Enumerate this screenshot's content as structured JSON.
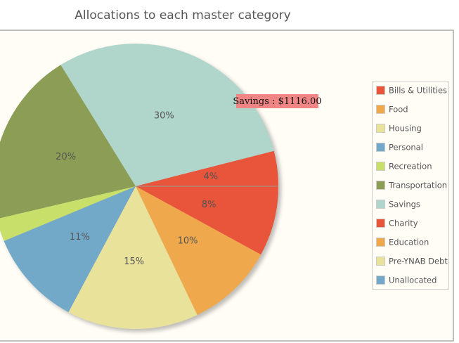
{
  "chart_data": {
    "type": "pie",
    "title": "Allocations to each master category",
    "categories": [
      "Bills & Utilities",
      "Food",
      "Housing",
      "Personal",
      "Recreation",
      "Transportation",
      "Savings",
      "Charity",
      "Education",
      "Pre-YNAB Debt",
      "Unallocated"
    ],
    "values": [
      8,
      10,
      15,
      11,
      2.6,
      20,
      30,
      4,
      0,
      0,
      0
    ],
    "value_labels": [
      "8%",
      "10%",
      "15%",
      "11%",
      null,
      "20%",
      "30%",
      "4%",
      null,
      null,
      null
    ],
    "colors": [
      "#e8553a",
      "#f0a84c",
      "#e9e29a",
      "#72a8c8",
      "#c8e06a",
      "#8c9e55",
      "#b0d6cc",
      "#e8553a",
      "#f0a84c",
      "#e9e29a",
      "#72a8c8"
    ],
    "tooltip": "Savings : $1116.00",
    "legend": "right"
  }
}
